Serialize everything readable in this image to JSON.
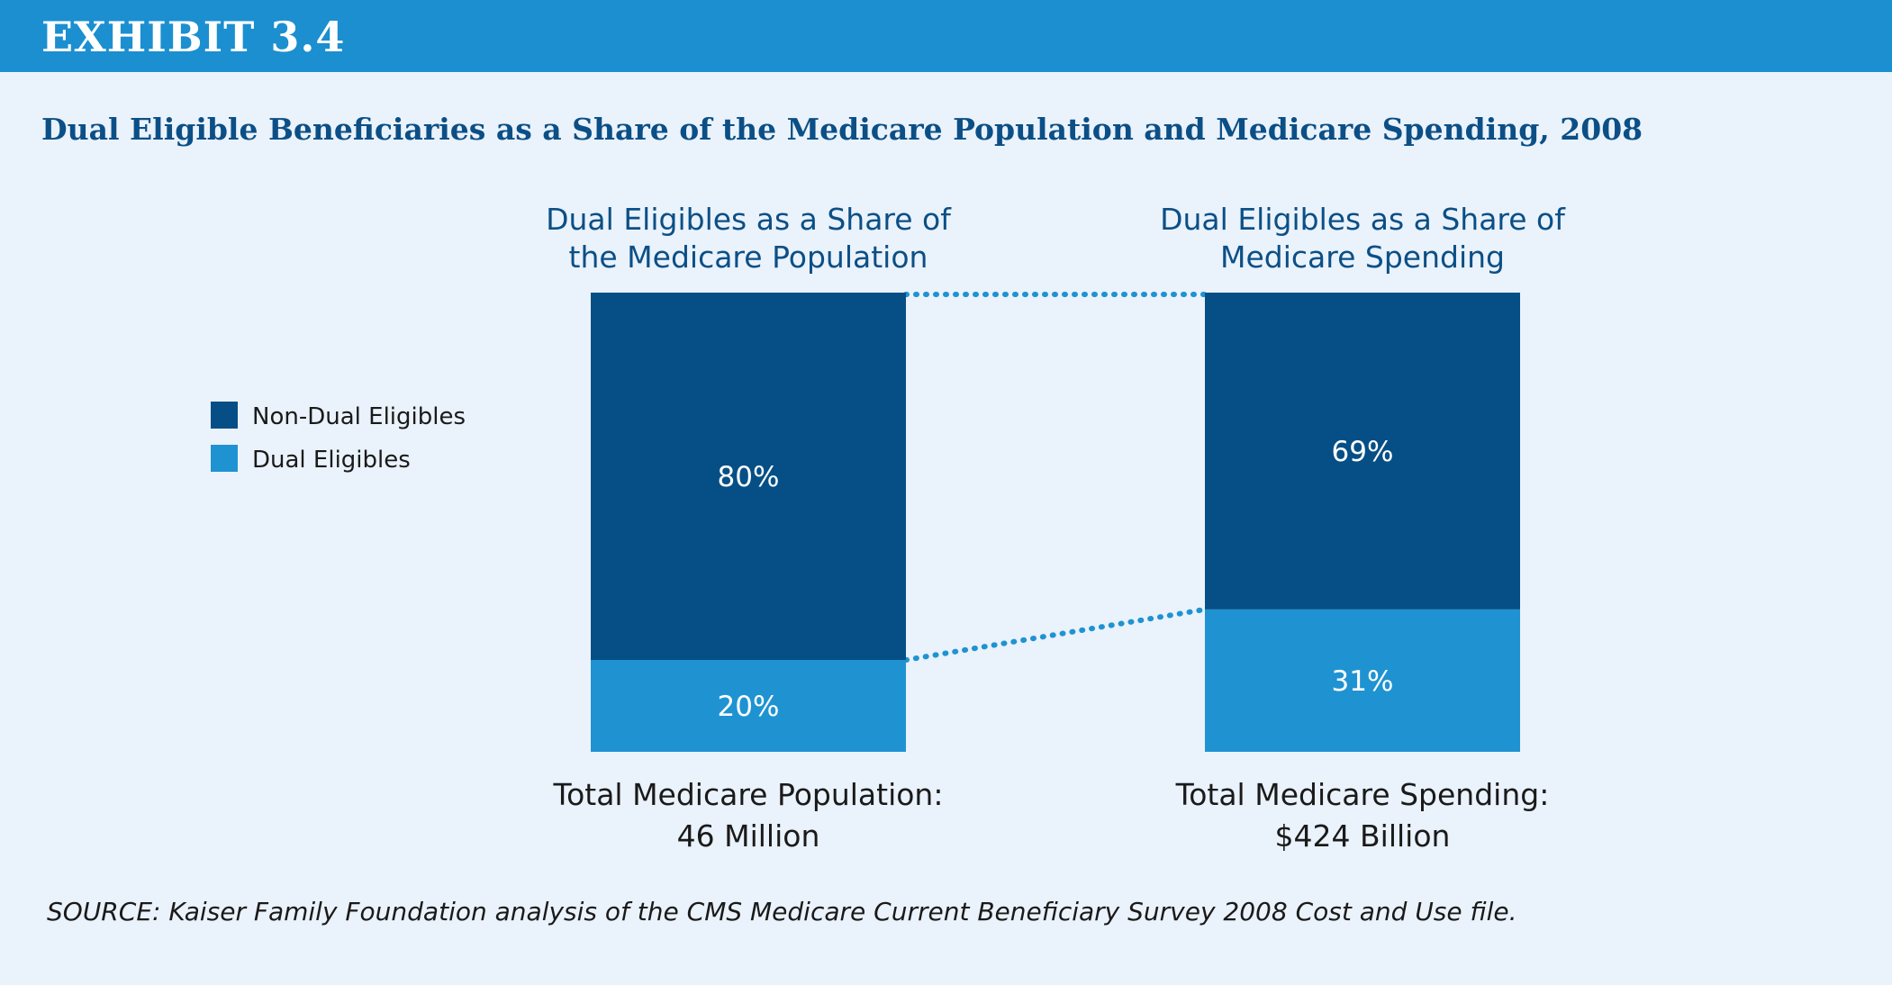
{
  "exhibit_label": "EXHIBIT 3.4",
  "source_note": "SOURCE:  Kaiser Family Foundation analysis of the CMS Medicare Current Beneficiary Survey 2008 Cost and Use file.",
  "colors": {
    "banner": "#1b8fd0",
    "background": "#eaf2fb",
    "non_dual": "#054f86",
    "dual": "#1f93d2",
    "connector": "#1f93d2",
    "title": "#0b4f86"
  },
  "chart_data": {
    "type": "bar",
    "stacked": true,
    "percent_stacked": true,
    "title": "Dual Eligible Beneficiaries as a Share of the Medicare Population and Medicare Spending, 2008",
    "categories": [
      [
        "Dual Eligibles as a Share of",
        "the Medicare Population"
      ],
      [
        "Dual Eligibles as a Share of",
        "Medicare Spending"
      ]
    ],
    "totals": [
      [
        "Total Medicare Population:",
        "46 Million"
      ],
      [
        "Total Medicare Spending:",
        "$424 Billion"
      ]
    ],
    "series": [
      {
        "name": "Dual Eligibles",
        "values": [
          20,
          31
        ],
        "labels": [
          "20%",
          "31%"
        ],
        "color": "#1f93d2"
      },
      {
        "name": "Non-Dual Eligibles",
        "values": [
          80,
          69
        ],
        "labels": [
          "80%",
          "69%"
        ],
        "color": "#054f86"
      }
    ],
    "legend": {
      "position": "left",
      "entries": [
        "Non-Dual Eligibles",
        "Dual Eligibles"
      ]
    },
    "ylim": [
      0,
      100
    ],
    "grid": false,
    "connectors": "dotted lines linking segment boundaries between the two bars"
  }
}
